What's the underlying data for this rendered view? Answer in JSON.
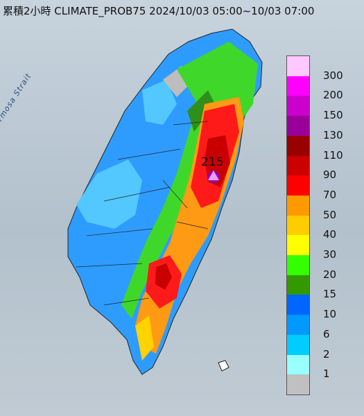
{
  "title": "累積2小時 CLIMATE_PROB75 2024/10/03 05:00~10/03 07:00",
  "strait_label": "Formosa Strait",
  "max_label": "215",
  "legend": [
    {
      "label": "300",
      "color": "#ffc8ff"
    },
    {
      "label": "200",
      "color": "#ff00ff"
    },
    {
      "label": "150",
      "color": "#cc00cc"
    },
    {
      "label": "130",
      "color": "#990099"
    },
    {
      "label": "110",
      "color": "#990000"
    },
    {
      "label": "90",
      "color": "#cc0000"
    },
    {
      "label": "70",
      "color": "#ff0000"
    },
    {
      "label": "50",
      "color": "#ff9900"
    },
    {
      "label": "40",
      "color": "#ffcc00"
    },
    {
      "label": "30",
      "color": "#ffff00"
    },
    {
      "label": "20",
      "color": "#33ff00"
    },
    {
      "label": "15",
      "color": "#339900"
    },
    {
      "label": "10",
      "color": "#0066ff"
    },
    {
      "label": "6",
      "color": "#0099ff"
    },
    {
      "label": "2",
      "color": "#00ccff"
    },
    {
      "label": "1",
      "color": "#99ffff"
    },
    {
      "label": "",
      "color": "#c0c0c0"
    }
  ]
}
